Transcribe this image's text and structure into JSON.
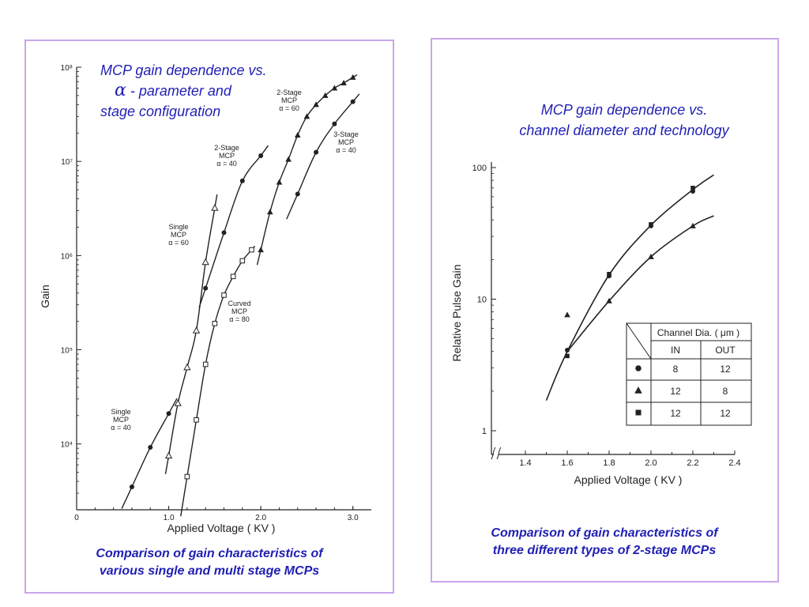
{
  "colors": {
    "border": "#c9a6ec",
    "title": "#1f1fb4",
    "ink": "#222222"
  },
  "left": {
    "title_line1": "MCP gain dependence vs.",
    "title_alpha": "α",
    "title_line2": " - parameter and",
    "title_line3": "stage configuration",
    "caption_line1": "Comparison of gain characteristics of",
    "caption_line2": "various single and multi stage MCPs"
  },
  "right": {
    "title_line1": "MCP gain dependence vs.",
    "title_line2": "channel diameter and technology",
    "caption_line1": "Comparison of gain characteristics of",
    "caption_line2": "three different types of 2-stage MCPs"
  },
  "chart_data": [
    {
      "type": "line",
      "xlabel": "Applied Voltage ( KV )",
      "ylabel": "Gain",
      "yscale": "log",
      "xlim": [
        0,
        3.2
      ],
      "ylim": [
        2000,
        100000000
      ],
      "x_ticks": [
        "0",
        "1.0",
        "2.0",
        "3.0"
      ],
      "y_ticks": [
        "10⁴",
        "10⁵",
        "10⁶",
        "10⁷",
        "10⁸"
      ],
      "series": [
        {
          "label_lines": [
            "Single",
            "MCP",
            "α = 40"
          ],
          "marker": "circle",
          "points": [
            [
              0.6,
              3500
            ],
            [
              0.8,
              9200
            ],
            [
              1.0,
              21000
            ]
          ]
        },
        {
          "label_lines": [
            "Single",
            "MCP",
            "α = 60"
          ],
          "marker": "triangle-open",
          "points": [
            [
              1.0,
              7500
            ],
            [
              1.1,
              27000
            ],
            [
              1.2,
              65000
            ],
            [
              1.3,
              160000
            ],
            [
              1.4,
              850000
            ],
            [
              1.5,
              3200000
            ]
          ]
        },
        {
          "label_lines": [
            "Curved",
            "MCP",
            "α = 80"
          ],
          "marker": "square-open",
          "points": [
            [
              1.2,
              4500
            ],
            [
              1.3,
              18000
            ],
            [
              1.4,
              70000
            ],
            [
              1.5,
              190000
            ],
            [
              1.6,
              380000
            ],
            [
              1.7,
              600000
            ],
            [
              1.8,
              880000
            ],
            [
              1.9,
              1150000
            ]
          ]
        },
        {
          "label_lines": [
            "2-Stage",
            "MCP",
            "α = 40"
          ],
          "marker": "circle",
          "points": [
            [
              1.4,
              450000
            ],
            [
              1.6,
              1750000
            ],
            [
              1.8,
              6200000
            ],
            [
              2.0,
              11500000
            ]
          ]
        },
        {
          "label_lines": [
            "2-Stage",
            "MCP",
            "α = 60"
          ],
          "marker": "triangle",
          "points": [
            [
              2.0,
              1150000
            ],
            [
              2.1,
              2900000
            ],
            [
              2.2,
              6000000
            ],
            [
              2.3,
              10500000
            ],
            [
              2.4,
              19000000
            ],
            [
              2.5,
              30000000
            ],
            [
              2.6,
              40000000
            ],
            [
              2.7,
              50000000
            ],
            [
              2.8,
              60000000
            ],
            [
              2.9,
              68000000
            ],
            [
              3.0,
              78000000
            ]
          ]
        },
        {
          "label_lines": [
            "3-Stage",
            "MCP",
            "α = 40"
          ],
          "marker": "circle",
          "points": [
            [
              2.4,
              4500000
            ],
            [
              2.6,
              12500000
            ],
            [
              2.8,
              25000000
            ],
            [
              3.0,
              43000000
            ]
          ]
        }
      ]
    },
    {
      "type": "line",
      "xlabel": "Applied Voltage ( KV )",
      "ylabel": "Relative Pulse Gain",
      "yscale": "log",
      "xlim": [
        1.2,
        2.4
      ],
      "ylim": [
        0.8,
        110
      ],
      "x_ticks": [
        "1.4",
        "1.6",
        "1.8",
        "2.0",
        "2.2",
        "2.4"
      ],
      "y_ticks": [
        "1",
        "10",
        "100"
      ],
      "series": [
        {
          "marker": "circle",
          "channel_in": "8",
          "channel_out": "12",
          "points": [
            [
              1.6,
              4.1
            ],
            [
              1.8,
              15
            ],
            [
              2.0,
              36
            ],
            [
              2.2,
              66
            ]
          ]
        },
        {
          "marker": "triangle",
          "channel_in": "12",
          "channel_out": "8",
          "points": [
            [
              1.6,
              7.6
            ],
            [
              1.8,
              9.7
            ],
            [
              2.0,
              21
            ],
            [
              2.2,
              36
            ]
          ]
        },
        {
          "marker": "square",
          "channel_in": "12",
          "channel_out": "12",
          "points": [
            [
              1.6,
              3.7
            ],
            [
              1.8,
              15.5
            ],
            [
              2.0,
              37
            ],
            [
              2.2,
              70
            ]
          ]
        }
      ],
      "table": {
        "header": "Channel Dia. ( μm )",
        "col_in": "IN",
        "col_out": "OUT"
      }
    }
  ]
}
